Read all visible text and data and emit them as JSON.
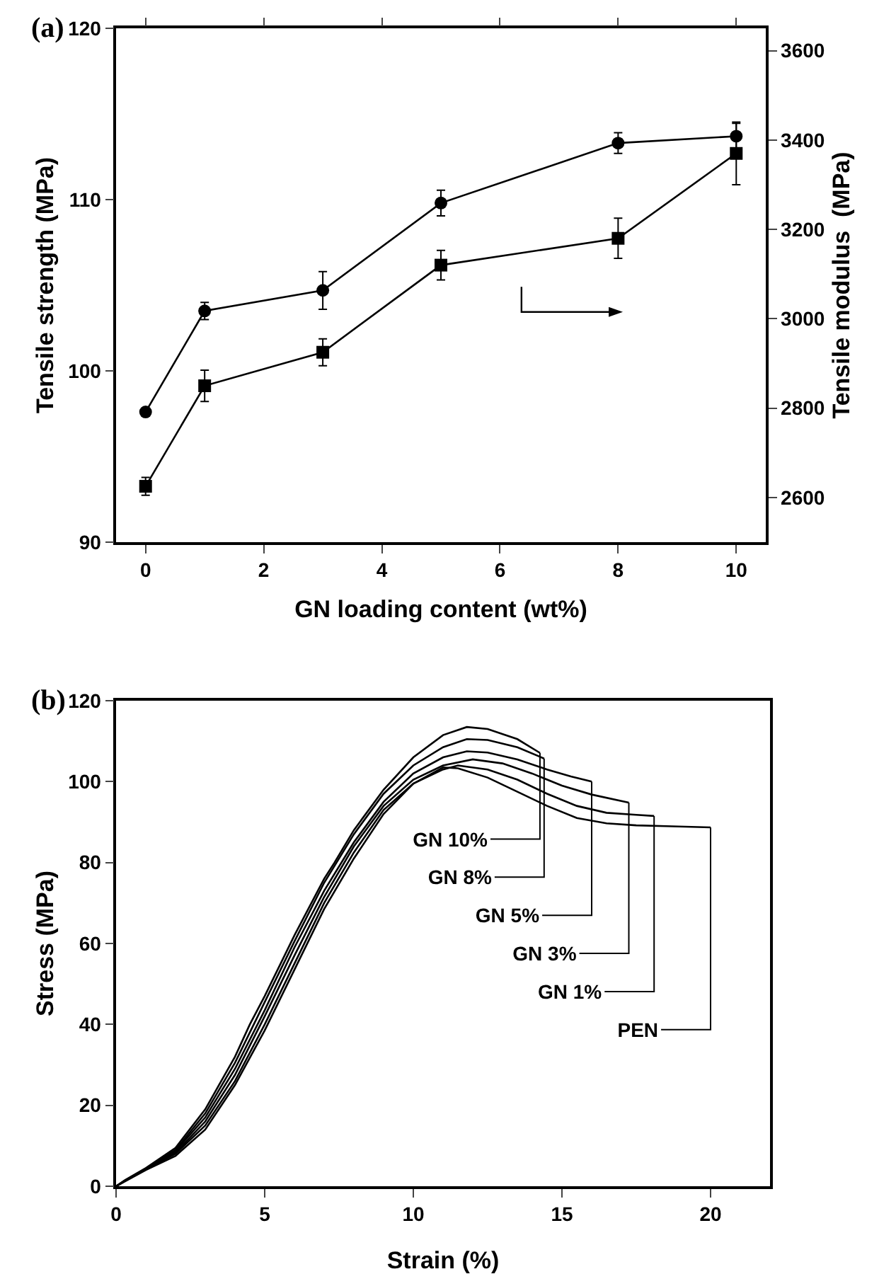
{
  "chart_data": [
    {
      "type": "line",
      "title": "(a)",
      "xlabel": "GN loading content (wt%)",
      "ylabel": "Tensile strength (MPa)",
      "y2label": "Tensile modulus  (MPa)",
      "x": [
        0,
        1,
        3,
        5,
        8,
        10
      ],
      "series": [
        {
          "color": "#000000",
          "marker": "circle",
          "values": [
            97.6,
            103.5,
            104.7,
            109.8,
            113.3,
            113.7
          ],
          "errors": [
            null,
            0.5,
            1.1,
            0.75,
            0.6,
            0.75
          ]
        },
        {
          "color": "#000000",
          "marker": "square",
          "axis": "y2",
          "values": [
            2625,
            2850,
            2925,
            3120,
            3180,
            3370
          ],
          "errors": [
            20,
            35,
            30,
            33,
            45,
            70
          ]
        }
      ],
      "xlim": [
        -0.5,
        10.5
      ],
      "xticks": [
        0,
        2,
        4,
        6,
        8,
        10
      ],
      "ylim": [
        90,
        120
      ],
      "yticks": [
        90,
        100,
        110,
        120
      ],
      "y2lim": [
        2500,
        3650
      ],
      "y2ticks": [
        2600,
        2800,
        3000,
        3200,
        3400,
        3600
      ],
      "grid": false
    },
    {
      "type": "line",
      "title": "(b)",
      "xlabel": "Strain (%)",
      "ylabel": "Stress (MPa)",
      "annotations": [
        {
          "text": "GN 10%",
          "x": 14.26,
          "y": 107.1
        },
        {
          "text": "GN 8%",
          "x": 14.4,
          "y": 105.7
        },
        {
          "text": "GN 5%",
          "x": 16,
          "y": 100
        },
        {
          "text": "GN 3%",
          "x": 17.25,
          "y": 94.8
        },
        {
          "text": "GN 1%",
          "x": 18.1,
          "y": 91.5
        },
        {
          "text": "PEN",
          "x": 20,
          "y": 88.7
        }
      ],
      "series": [
        {
          "color": "#000000",
          "x": [
            0,
            0.3,
            1,
            2,
            3,
            4,
            4.5,
            5,
            6,
            7,
            7.35,
            8,
            9,
            10,
            11,
            11.8,
            12.5,
            13.5,
            14.26
          ],
          "values": [
            0,
            1.5,
            4.5,
            9.5,
            19,
            32,
            40,
            47,
            62,
            76,
            80,
            88,
            98,
            106,
            111.5,
            113.5,
            113,
            110.5,
            107.1
          ]
        },
        {
          "color": "#000000",
          "x": [
            0,
            0.3,
            1,
            2,
            3,
            4,
            5,
            6,
            7,
            8,
            9,
            10,
            11,
            11.8,
            12.5,
            13.5,
            14.4
          ],
          "values": [
            0,
            1.4,
            4.4,
            9,
            18,
            30.5,
            45.5,
            60.5,
            75,
            87,
            97,
            104,
            108.5,
            110.5,
            110.3,
            108.5,
            105.7
          ]
        },
        {
          "color": "#000000",
          "x": [
            0,
            0.3,
            1,
            2,
            3,
            4,
            5,
            6,
            7,
            8,
            9,
            10,
            11,
            11.8,
            12.5,
            13.5,
            14.5,
            15.3,
            16
          ],
          "values": [
            0,
            1.4,
            4.3,
            8.7,
            17,
            29,
            43.5,
            59,
            73,
            85,
            95,
            102,
            106,
            107.5,
            107.2,
            105.5,
            103,
            101.3,
            100
          ]
        },
        {
          "color": "#000000",
          "x": [
            0,
            0.3,
            1,
            2,
            3,
            4,
            5,
            6,
            7,
            8,
            9,
            10,
            11,
            12,
            13,
            14,
            15,
            16,
            17.25
          ],
          "values": [
            0,
            1.3,
            4.2,
            8.3,
            16,
            27.5,
            42,
            57,
            71.5,
            84,
            94,
            100.5,
            104,
            105.5,
            104.5,
            102,
            99,
            96.8,
            94.8
          ]
        },
        {
          "color": "#000000",
          "x": [
            0,
            0.3,
            1,
            2,
            3,
            4,
            5,
            6,
            7,
            8,
            9,
            10,
            11,
            11.5,
            12.5,
            13.5,
            14.5,
            15.5,
            16.5,
            17.5,
            18.1
          ],
          "values": [
            0,
            1.3,
            4.1,
            8,
            15,
            26,
            40,
            55,
            70,
            82.5,
            93,
            99.5,
            103,
            104,
            103,
            100.5,
            97,
            94,
            92.3,
            91.8,
            91.5
          ]
        },
        {
          "color": "#000000",
          "x": [
            0,
            0.3,
            1,
            2,
            3,
            4,
            5,
            6,
            7,
            8,
            9,
            10,
            11,
            11.5,
            12.5,
            13.5,
            14.5,
            15.5,
            16.5,
            17.5,
            18.5,
            20
          ],
          "values": [
            0,
            1.2,
            4,
            7.5,
            14,
            25,
            38.5,
            53.5,
            68.5,
            81,
            92,
            99.5,
            103.5,
            103.3,
            101,
            97.5,
            94,
            91,
            89.7,
            89.2,
            89,
            88.7
          ]
        }
      ],
      "xlim": [
        0,
        22
      ],
      "xticks": [
        0,
        5,
        10,
        15,
        20
      ],
      "ylim": [
        0,
        120
      ],
      "yticks": [
        0,
        20,
        40,
        60,
        80,
        100,
        120
      ],
      "grid": false
    }
  ]
}
